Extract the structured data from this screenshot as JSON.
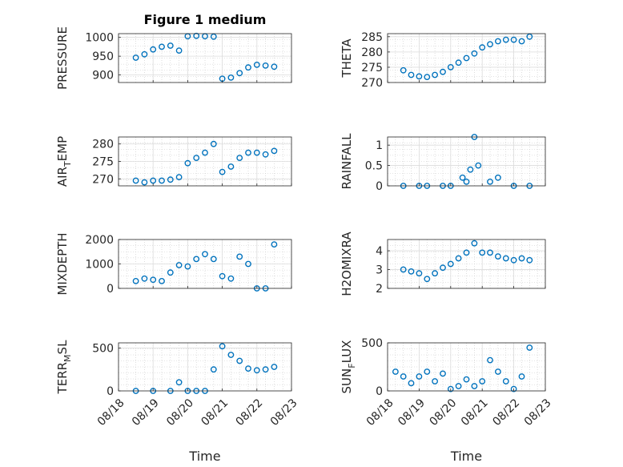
{
  "figure": {
    "title": "Figure 1 medium"
  },
  "chart_data": [
    {
      "type": "scatter",
      "ylabel": "PRESSURE",
      "title": "Figure 1 medium",
      "ylim": [
        880,
        1010
      ],
      "yticks": [
        900,
        950,
        1000
      ],
      "xlim": [
        "08/18",
        "08/23"
      ],
      "grid": true,
      "x": [
        "08/18 12:00",
        "08/18 18:00",
        "08/19 00:00",
        "08/19 06:00",
        "08/19 12:00",
        "08/19 18:00",
        "08/20 00:00",
        "08/20 06:00",
        "08/20 12:00",
        "08/20 18:00",
        "08/21 00:00",
        "08/21 06:00",
        "08/21 12:00",
        "08/21 18:00",
        "08/22 00:00",
        "08/22 06:00",
        "08/22 12:00"
      ],
      "y": [
        946,
        955,
        968,
        975,
        978,
        965,
        1003,
        1004,
        1003,
        1002,
        890,
        893,
        905,
        920,
        927,
        925,
        922
      ]
    },
    {
      "type": "scatter",
      "ylabel": "THETA",
      "ylim": [
        270,
        286
      ],
      "yticks": [
        270,
        275,
        280,
        285
      ],
      "xlim": [
        "08/18",
        "08/23"
      ],
      "grid": true,
      "x": [
        "08/18 12:00",
        "08/18 18:00",
        "08/19 00:00",
        "08/19 06:00",
        "08/19 12:00",
        "08/19 18:00",
        "08/20 00:00",
        "08/20 06:00",
        "08/20 12:00",
        "08/20 18:00",
        "08/21 00:00",
        "08/21 06:00",
        "08/21 12:00",
        "08/21 18:00",
        "08/22 00:00",
        "08/22 06:00",
        "08/22 12:00"
      ],
      "y": [
        274,
        272.5,
        272,
        271.8,
        272.5,
        273.5,
        275,
        276.5,
        278,
        279.5,
        281.5,
        282.5,
        283.5,
        284,
        284,
        283.5,
        285
      ]
    },
    {
      "type": "scatter",
      "ylabel": "AIR_TEMP",
      "ylim": [
        268,
        282
      ],
      "yticks": [
        270,
        275,
        280
      ],
      "xlim": [
        "08/18",
        "08/23"
      ],
      "grid": true,
      "x": [
        "08/18 12:00",
        "08/18 18:00",
        "08/19 00:00",
        "08/19 06:00",
        "08/19 12:00",
        "08/19 18:00",
        "08/20 00:00",
        "08/20 06:00",
        "08/20 12:00",
        "08/20 18:00",
        "08/21 00:00",
        "08/21 06:00",
        "08/21 12:00",
        "08/21 18:00",
        "08/22 00:00",
        "08/22 06:00",
        "08/22 12:00"
      ],
      "y": [
        269.5,
        269,
        269.5,
        269.5,
        269.8,
        270.5,
        274.5,
        276,
        277.5,
        280,
        272,
        273.5,
        276,
        277.5,
        277.5,
        277,
        278
      ]
    },
    {
      "type": "scatter",
      "ylabel": "RAINFALL",
      "ylim": [
        0,
        1.2
      ],
      "yticks": [
        0,
        0.5,
        1
      ],
      "xlim": [
        "08/18",
        "08/23"
      ],
      "grid": true,
      "x": [
        "08/18 12:00",
        "08/19 00:00",
        "08/19 06:00",
        "08/19 18:00",
        "08/20 00:00",
        "08/20 09:00",
        "08/20 12:00",
        "08/20 15:00",
        "08/20 18:00",
        "08/20 21:00",
        "08/21 06:00",
        "08/21 12:00",
        "08/22 00:00",
        "08/22 12:00"
      ],
      "y": [
        0,
        0,
        0,
        0,
        0,
        0.2,
        0.1,
        0.4,
        1.2,
        0.5,
        0.1,
        0.2,
        0,
        0
      ]
    },
    {
      "type": "scatter",
      "ylabel": "MIXDEPTH",
      "ylim": [
        0,
        2000
      ],
      "yticks": [
        0,
        1000,
        2000
      ],
      "xlim": [
        "08/18",
        "08/23"
      ],
      "grid": true,
      "x": [
        "08/18 12:00",
        "08/18 18:00",
        "08/19 00:00",
        "08/19 06:00",
        "08/19 12:00",
        "08/19 18:00",
        "08/20 00:00",
        "08/20 06:00",
        "08/20 12:00",
        "08/20 18:00",
        "08/21 00:00",
        "08/21 06:00",
        "08/21 12:00",
        "08/21 18:00",
        "08/22 00:00",
        "08/22 06:00",
        "08/22 12:00"
      ],
      "y": [
        300,
        400,
        350,
        300,
        650,
        950,
        900,
        1200,
        1400,
        1200,
        500,
        400,
        1300,
        1000,
        0,
        0,
        1800
      ]
    },
    {
      "type": "scatter",
      "ylabel": "H2OMIXRA",
      "ylim": [
        2,
        4.6
      ],
      "yticks": [
        2,
        3,
        4
      ],
      "xlim": [
        "08/18",
        "08/23"
      ],
      "grid": true,
      "x": [
        "08/18 12:00",
        "08/18 18:00",
        "08/19 00:00",
        "08/19 06:00",
        "08/19 12:00",
        "08/19 18:00",
        "08/20 00:00",
        "08/20 06:00",
        "08/20 12:00",
        "08/20 18:00",
        "08/21 00:00",
        "08/21 06:00",
        "08/21 12:00",
        "08/21 18:00",
        "08/22 00:00",
        "08/22 06:00",
        "08/22 12:00"
      ],
      "y": [
        3,
        2.9,
        2.8,
        2.5,
        2.8,
        3.1,
        3.3,
        3.6,
        3.9,
        4.4,
        3.9,
        3.9,
        3.7,
        3.6,
        3.5,
        3.6,
        3.5
      ]
    },
    {
      "type": "scatter",
      "ylabel": "TERR_MSL",
      "ylim": [
        0,
        560
      ],
      "yticks": [
        0,
        500
      ],
      "xlim": [
        "08/18",
        "08/23"
      ],
      "xticks": [
        "08/18",
        "08/19",
        "08/20",
        "08/21",
        "08/22",
        "08/23"
      ],
      "xlabel": "Time",
      "grid": true,
      "x": [
        "08/18 12:00",
        "08/19 00:00",
        "08/19 12:00",
        "08/19 18:00",
        "08/20 00:00",
        "08/20 06:00",
        "08/20 12:00",
        "08/20 18:00",
        "08/21 00:00",
        "08/21 06:00",
        "08/21 12:00",
        "08/21 18:00",
        "08/22 00:00",
        "08/22 06:00",
        "08/22 12:00"
      ],
      "y": [
        0,
        0,
        0,
        100,
        0,
        0,
        0,
        250,
        520,
        420,
        350,
        260,
        240,
        250,
        280
      ]
    },
    {
      "type": "scatter",
      "ylabel": "SUN_FLUX",
      "ylim": [
        0,
        500
      ],
      "yticks": [
        0,
        500
      ],
      "xlim": [
        "08/18",
        "08/23"
      ],
      "xticks": [
        "08/18",
        "08/19",
        "08/20",
        "08/21",
        "08/22",
        "08/23"
      ],
      "xlabel": "Time",
      "grid": true,
      "x": [
        "08/18 06:00",
        "08/18 12:00",
        "08/18 18:00",
        "08/19 00:00",
        "08/19 06:00",
        "08/19 12:00",
        "08/19 18:00",
        "08/20 00:00",
        "08/20 06:00",
        "08/20 12:00",
        "08/20 18:00",
        "08/21 00:00",
        "08/21 06:00",
        "08/21 12:00",
        "08/21 18:00",
        "08/22 00:00",
        "08/22 06:00",
        "08/22 12:00"
      ],
      "y": [
        200,
        150,
        80,
        150,
        200,
        100,
        180,
        20,
        50,
        120,
        50,
        100,
        320,
        200,
        100,
        20,
        150,
        450
      ]
    }
  ]
}
